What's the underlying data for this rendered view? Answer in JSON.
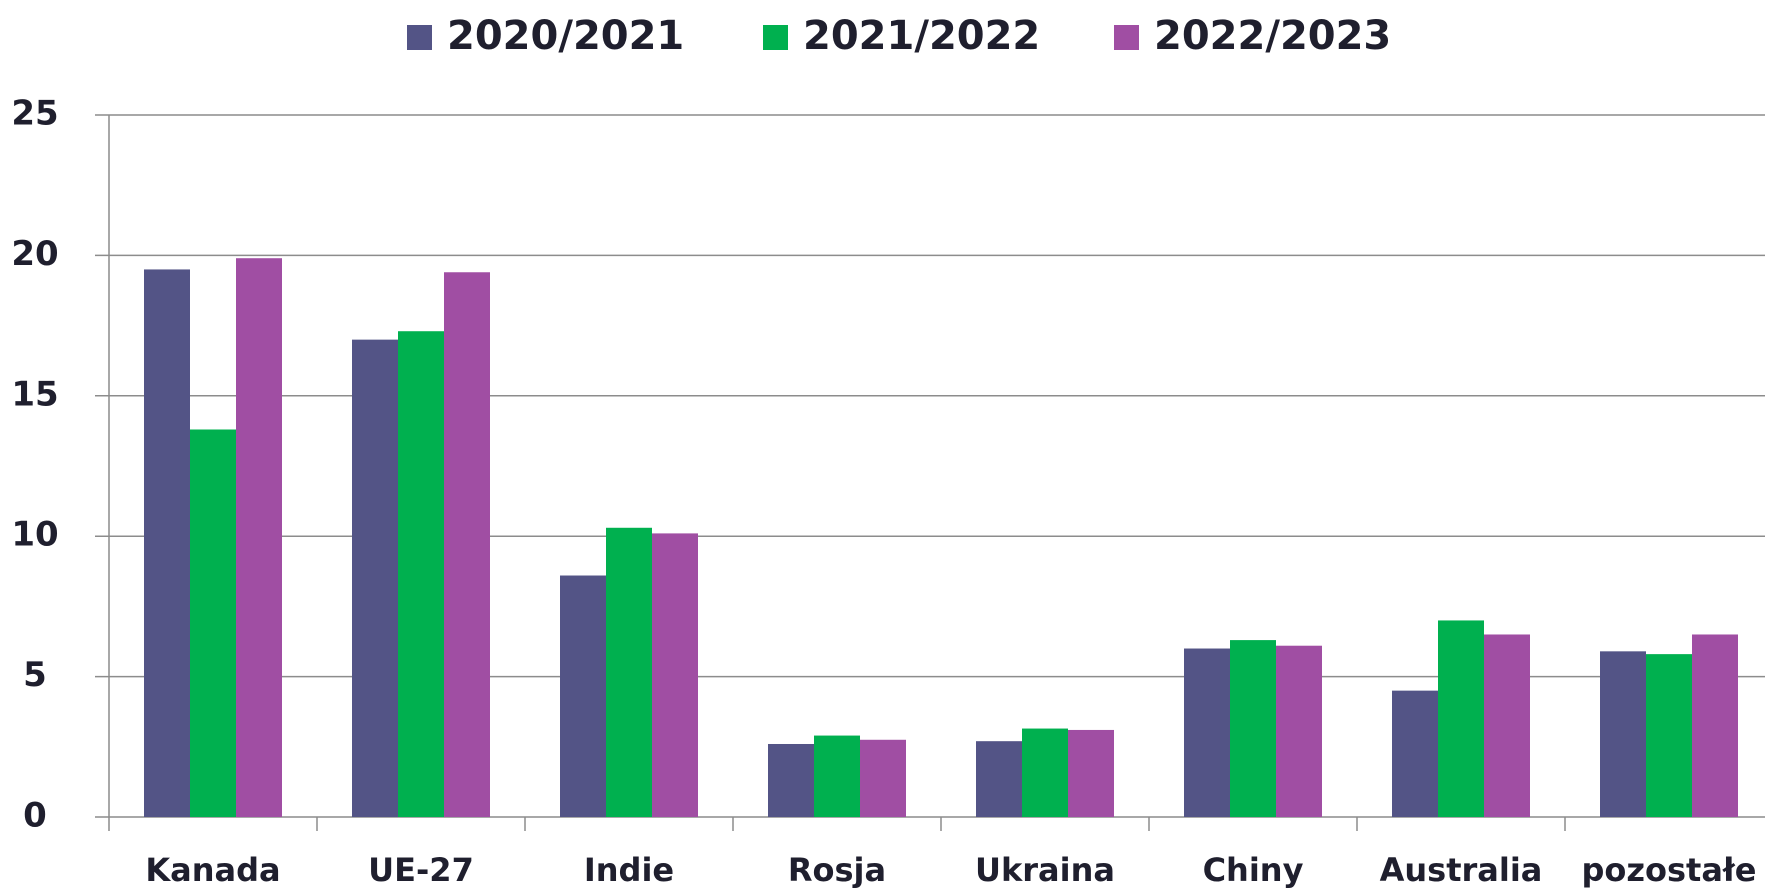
{
  "chart_data": {
    "type": "bar",
    "categories": [
      "Kanada",
      "UE-27",
      "Indie",
      "Rosja",
      "Ukraina",
      "Chiny",
      "Australia",
      "pozostałe"
    ],
    "series": [
      {
        "name": "2020/2021",
        "color": "#535486",
        "values": [
          19.5,
          17.0,
          8.6,
          2.6,
          2.7,
          6.0,
          4.5,
          5.9
        ]
      },
      {
        "name": "2021/2022",
        "color": "#00b04f",
        "values": [
          13.8,
          17.3,
          10.3,
          2.9,
          3.15,
          6.3,
          7.0,
          5.8
        ]
      },
      {
        "name": "2022/2023",
        "color": "#a04ea3",
        "values": [
          19.9,
          19.4,
          10.1,
          2.75,
          3.1,
          6.1,
          6.5,
          6.5
        ]
      }
    ],
    "ylim": [
      0,
      25
    ],
    "yticks": [
      0,
      5,
      10,
      15,
      20,
      25
    ],
    "grid": true,
    "legend": "top"
  }
}
